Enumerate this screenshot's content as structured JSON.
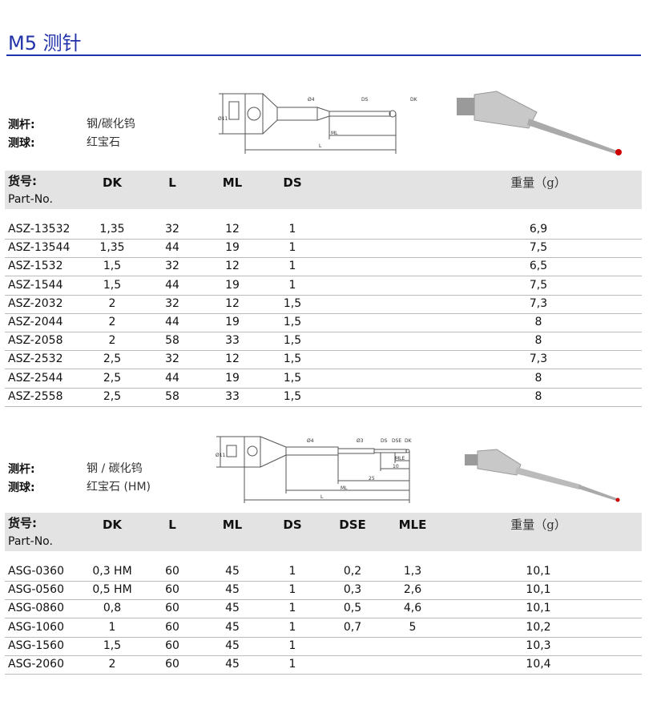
{
  "title": "M5 测针",
  "sections": [
    {
      "shaft_label": "测杆:",
      "shaft_value": "钢/碳化钨",
      "ball_label": "测球:",
      "ball_value": "红宝石",
      "drawing_labels": [
        "Ø11",
        "Ø4",
        "DS",
        "DK",
        "ML",
        "L"
      ],
      "headers": {
        "part": "货号:",
        "part_en": "Part-No.",
        "cols": [
          "DK",
          "L",
          "ML",
          "DS"
        ],
        "weight": "重量（g）"
      },
      "rows": [
        [
          "ASZ-13532",
          "1,35",
          "32",
          "12",
          "1",
          "6,9"
        ],
        [
          "ASZ-13544",
          "1,35",
          "44",
          "19",
          "1",
          "7,5"
        ],
        [
          "ASZ-1532",
          "1,5",
          "32",
          "12",
          "1",
          "6,5"
        ],
        [
          "ASZ-1544",
          "1,5",
          "44",
          "19",
          "1",
          "7,5"
        ],
        [
          "ASZ-2032",
          "2",
          "32",
          "12",
          "1,5",
          "7,3"
        ],
        [
          "ASZ-2044",
          "2",
          "44",
          "19",
          "1,5",
          "8"
        ],
        [
          "ASZ-2058",
          "2",
          "58",
          "33",
          "1,5",
          "8"
        ],
        [
          "ASZ-2532",
          "2,5",
          "32",
          "12",
          "1,5",
          "7,3"
        ],
        [
          "ASZ-2544",
          "2,5",
          "44",
          "19",
          "1,5",
          "8"
        ],
        [
          "ASZ-2558",
          "2,5",
          "58",
          "33",
          "1,5",
          "8"
        ]
      ]
    },
    {
      "shaft_label": "测杆:",
      "shaft_value": "钢 / 碳化钨",
      "ball_label": "测球:",
      "ball_value": "红宝石 (HM)",
      "drawing_labels": [
        "Ø11",
        "Ø4",
        "Ø3",
        "DS",
        "DSE",
        "DK",
        "MLE",
        "10",
        "25",
        "ML",
        "L"
      ],
      "headers": {
        "part": "货号:",
        "part_en": "Part-No.",
        "cols": [
          "DK",
          "L",
          "ML",
          "DS",
          "DSE",
          "MLE"
        ],
        "weight": "重量（g）"
      },
      "rows": [
        [
          "ASG-0360",
          "0,3 HM",
          "60",
          "45",
          "1",
          "0,2",
          "1,3",
          "10,1"
        ],
        [
          "ASG-0560",
          "0,5 HM",
          "60",
          "45",
          "1",
          "0,3",
          "2,6",
          "10,1"
        ],
        [
          "ASG-0860",
          "0,8",
          "60",
          "45",
          "1",
          "0,5",
          "4,6",
          "10,1"
        ],
        [
          "ASG-1060",
          "1",
          "60",
          "45",
          "1",
          "0,7",
          "5",
          "10,2"
        ],
        [
          "ASG-1560",
          "1,5",
          "60",
          "45",
          "1",
          "",
          "",
          "10,3"
        ],
        [
          "ASG-2060",
          "2",
          "60",
          "45",
          "1",
          "",
          "",
          "10,4"
        ]
      ]
    }
  ],
  "colors": {
    "title": "#2233aa",
    "band": "#e3e3e3",
    "ruby": "#cc0000"
  }
}
